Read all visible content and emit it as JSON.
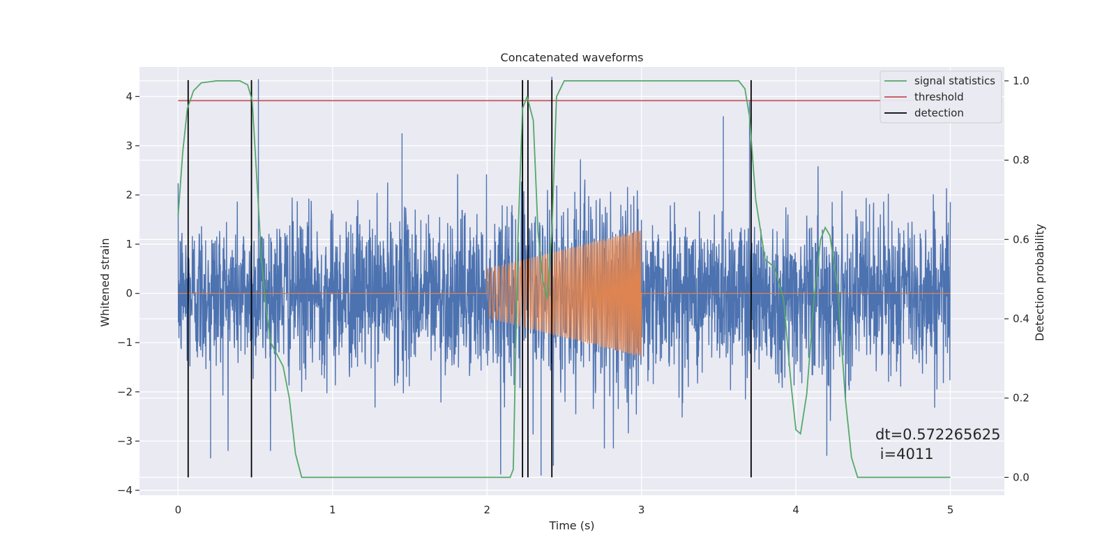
{
  "chart_data": {
    "type": "line",
    "title": "Concatenated waveforms",
    "xlabel": "Time (s)",
    "ylabel": "Whitened strain",
    "y2label": "Detection probability",
    "xlim": [
      -0.25,
      5.35
    ],
    "ylim": [
      -4.1,
      4.6
    ],
    "y2lim": [
      -0.045,
      1.035
    ],
    "xticks": [
      0,
      1,
      2,
      3,
      4,
      5
    ],
    "yticks": [
      -4,
      -3,
      -2,
      -1,
      0,
      1,
      2,
      3,
      4
    ],
    "y2ticks": [
      0.0,
      0.2,
      0.4,
      0.6,
      0.8,
      1.0
    ],
    "xtick_labels": [
      "0",
      "1",
      "2",
      "3",
      "4",
      "5"
    ],
    "ytick_labels": [
      "−4",
      "−3",
      "−2",
      "−1",
      "0",
      "1",
      "2",
      "3",
      "4"
    ],
    "y2tick_labels": [
      "0.0",
      "0.2",
      "0.4",
      "0.6",
      "0.8",
      "1.0"
    ],
    "grid": true,
    "legend_position": "top-right",
    "series": [
      {
        "name": "whitened strain",
        "axis": "left",
        "color": "#4c72b0",
        "description": "noisy whitened strain time series sampled from t=0 to t=5 s, amplitude mostly within ±2.5, peaks near 4.3",
        "x_range": [
          0,
          5
        ],
        "typical_amplitude": 1.3,
        "extreme_values": [
          {
            "x": 0.52,
            "y": 4.35
          },
          {
            "x": 2.42,
            "y": 4.4
          },
          {
            "x": 3.7,
            "y": 3.9
          },
          {
            "x": 2.35,
            "y": -3.7
          },
          {
            "x": 0.21,
            "y": -3.35
          },
          {
            "x": 4.2,
            "y": -3.3
          },
          {
            "x": 1.45,
            "y": 3.25
          },
          {
            "x": 3.53,
            "y": 3.6
          },
          {
            "x": 2.43,
            "y": -3.5
          }
        ]
      },
      {
        "name": "injected waveform",
        "axis": "left",
        "color": "#dd8452",
        "description": "chirp signal between t=2.0 and t=3.0 s, amplitude growing from ±0.5 to ±1.3, zero elsewhere",
        "start": 2.0,
        "end": 3.0,
        "amplitude_start": 0.5,
        "amplitude_end": 1.3
      },
      {
        "name": "signal statistics",
        "axis": "right",
        "color": "#55a868",
        "points": [
          [
            0.0,
            0.66
          ],
          [
            0.03,
            0.82
          ],
          [
            0.06,
            0.93
          ],
          [
            0.1,
            0.975
          ],
          [
            0.15,
            0.995
          ],
          [
            0.25,
            1.0
          ],
          [
            0.4,
            1.0
          ],
          [
            0.45,
            0.99
          ],
          [
            0.48,
            0.95
          ],
          [
            0.51,
            0.75
          ],
          [
            0.54,
            0.55
          ],
          [
            0.57,
            0.42
          ],
          [
            0.6,
            0.34
          ],
          [
            0.64,
            0.31
          ],
          [
            0.68,
            0.28
          ],
          [
            0.72,
            0.2
          ],
          [
            0.76,
            0.06
          ],
          [
            0.8,
            0.0
          ],
          [
            1.0,
            0.0
          ],
          [
            2.0,
            0.0
          ],
          [
            2.15,
            0.0
          ],
          [
            2.17,
            0.02
          ],
          [
            2.2,
            0.6
          ],
          [
            2.23,
            0.93
          ],
          [
            2.26,
            0.96
          ],
          [
            2.3,
            0.9
          ],
          [
            2.33,
            0.62
          ],
          [
            2.36,
            0.5
          ],
          [
            2.39,
            0.45
          ],
          [
            2.42,
            0.62
          ],
          [
            2.45,
            0.96
          ],
          [
            2.5,
            1.0
          ],
          [
            3.0,
            1.0
          ],
          [
            3.63,
            1.0
          ],
          [
            3.67,
            0.98
          ],
          [
            3.7,
            0.91
          ],
          [
            3.74,
            0.7
          ],
          [
            3.8,
            0.55
          ],
          [
            3.86,
            0.53
          ],
          [
            3.92,
            0.45
          ],
          [
            3.97,
            0.23
          ],
          [
            4.0,
            0.12
          ],
          [
            4.03,
            0.11
          ],
          [
            4.07,
            0.21
          ],
          [
            4.12,
            0.46
          ],
          [
            4.16,
            0.6
          ],
          [
            4.19,
            0.63
          ],
          [
            4.22,
            0.61
          ],
          [
            4.27,
            0.48
          ],
          [
            4.32,
            0.2
          ],
          [
            4.36,
            0.05
          ],
          [
            4.4,
            0.0
          ],
          [
            4.6,
            0.0
          ],
          [
            5.0,
            0.0
          ]
        ]
      },
      {
        "name": "threshold",
        "axis": "right",
        "color": "#c44e52",
        "value": 0.95,
        "x_range": [
          0,
          5
        ]
      },
      {
        "name": "detection",
        "axis": "right",
        "color": "#000000",
        "x_positions": [
          0.065,
          0.475,
          2.23,
          2.265,
          2.42,
          3.71
        ],
        "y_range": [
          0.0,
          1.0
        ]
      }
    ],
    "legend": [
      {
        "label": "signal statistics",
        "color": "#55a868"
      },
      {
        "label": "threshold",
        "color": "#c44e52"
      },
      {
        "label": "detection",
        "color": "#000000"
      }
    ],
    "annotations": {
      "dt_text": "dt=0.572265625",
      "i_text": " i=4011"
    }
  }
}
